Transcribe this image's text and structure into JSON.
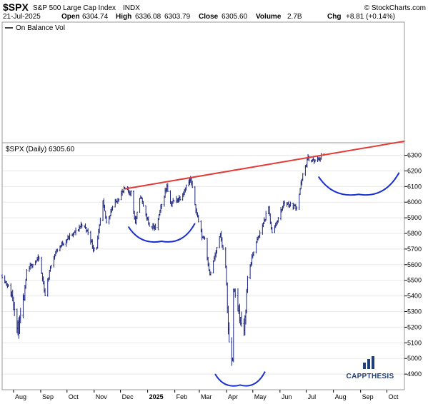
{
  "header": {
    "symbol": "$SPX",
    "name": "S&P 500 Large Cap Index",
    "exchange": "INDX",
    "watermark": "© StockCharts.com",
    "date": "21-Jul-2025",
    "open_label": "Open",
    "open": "6304.74",
    "high_label": "High",
    "high": "6336.08",
    "low_value": "6303.79",
    "close_label": "Close",
    "close": "6305.60",
    "volume_label": "Volume",
    "volume": "2.7B",
    "chg_label": "Chg",
    "chg": "+8.81 (+0.14%)"
  },
  "indicator_panel": {
    "legend": "On Balance Vol"
  },
  "price_panel": {
    "legend": "$SPX (Daily) 6305.60"
  },
  "branding": {
    "logo_text": "CAPPTHESIS"
  },
  "colors": {
    "bars": "#1a237e",
    "trendline": "#e53935",
    "cups": "#1a2fd4",
    "logo": "#1f3f79"
  },
  "chart_data": {
    "type": "ohlc-bar",
    "title": "$SPX S&P 500 Large Cap Index INDX",
    "series_name": "$SPX (Daily)",
    "y_axis": {
      "side": "right",
      "ticks": [
        4900,
        5000,
        5100,
        5200,
        5300,
        5400,
        5500,
        5600,
        5700,
        5800,
        5900,
        6000,
        6100,
        6200,
        6300
      ],
      "range": [
        4800,
        6380
      ]
    },
    "x_axis": {
      "ticks": [
        {
          "label": "Aug",
          "x": "2024-08-01"
        },
        {
          "label": "Sep",
          "x": "2024-09-01"
        },
        {
          "label": "Oct",
          "x": "2024-10-01"
        },
        {
          "label": "Nov",
          "x": "2024-11-01"
        },
        {
          "label": "Dec",
          "x": "2024-12-01"
        },
        {
          "label": "2025",
          "x": "2025-01-01",
          "bold": true
        },
        {
          "label": "Feb",
          "x": "2025-02-01"
        },
        {
          "label": "Mar",
          "x": "2025-03-01"
        },
        {
          "label": "Apr",
          "x": "2025-04-01"
        },
        {
          "label": "May",
          "x": "2025-05-01"
        },
        {
          "label": "Jun",
          "x": "2025-06-01"
        },
        {
          "label": "Jul",
          "x": "2025-07-01"
        },
        {
          "label": "Aug",
          "x": "2025-08-01"
        },
        {
          "label": "Sep",
          "x": "2025-09-01"
        },
        {
          "label": "Oct",
          "x": "2025-10-01"
        }
      ],
      "range": [
        "2024-07-19",
        "2025-10-21"
      ]
    },
    "price_path": [
      [
        "2024-07-19",
        5530
      ],
      [
        "2024-07-26",
        5460
      ],
      [
        "2024-08-02",
        5350
      ],
      [
        "2024-08-05",
        5190
      ],
      [
        "2024-08-07",
        5200
      ],
      [
        "2024-08-12",
        5340
      ],
      [
        "2024-08-16",
        5550
      ],
      [
        "2024-08-23",
        5610
      ],
      [
        "2024-08-30",
        5640
      ],
      [
        "2024-09-06",
        5410
      ],
      [
        "2024-09-13",
        5610
      ],
      [
        "2024-09-20",
        5700
      ],
      [
        "2024-09-30",
        5760
      ],
      [
        "2024-10-11",
        5810
      ],
      [
        "2024-10-18",
        5860
      ],
      [
        "2024-10-25",
        5810
      ],
      [
        "2024-10-31",
        5705
      ],
      [
        "2024-11-04",
        5720
      ],
      [
        "2024-11-11",
        6000
      ],
      [
        "2024-11-15",
        5870
      ],
      [
        "2024-11-22",
        5970
      ],
      [
        "2024-11-29",
        6030
      ],
      [
        "2024-12-06",
        6085
      ],
      [
        "2024-12-13",
        6060
      ],
      [
        "2024-12-18",
        5870
      ],
      [
        "2024-12-24",
        6040
      ],
      [
        "2025-01-02",
        5860
      ],
      [
        "2025-01-10",
        5830
      ],
      [
        "2025-01-16",
        5960
      ],
      [
        "2025-01-23",
        6110
      ],
      [
        "2025-01-27",
        5990
      ],
      [
        "2025-02-07",
        6030
      ],
      [
        "2025-02-14",
        6100
      ],
      [
        "2025-02-19",
        6144
      ],
      [
        "2025-02-26",
        5930
      ],
      [
        "2025-03-04",
        5780
      ],
      [
        "2025-03-07",
        5770
      ],
      [
        "2025-03-13",
        5530
      ],
      [
        "2025-03-25",
        5790
      ],
      [
        "2025-03-31",
        5600
      ],
      [
        "2025-04-04",
        5070
      ],
      [
        "2025-04-08",
        4980
      ],
      [
        "2025-04-09",
        5450
      ],
      [
        "2025-04-21",
        5150
      ],
      [
        "2025-04-25",
        5520
      ],
      [
        "2025-05-02",
        5690
      ],
      [
        "2025-05-12",
        5850
      ],
      [
        "2025-05-19",
        5960
      ],
      [
        "2025-05-23",
        5800
      ],
      [
        "2025-06-06",
        6000
      ],
      [
        "2025-06-13",
        5980
      ],
      [
        "2025-06-20",
        5970
      ],
      [
        "2025-06-27",
        6170
      ],
      [
        "2025-07-03",
        6280
      ],
      [
        "2025-07-11",
        6260
      ],
      [
        "2025-07-21",
        6305
      ]
    ],
    "annotations": {
      "trendline": {
        "x0": "2024-12-06",
        "y0": 6085,
        "x1": "2025-10-21",
        "y1": 6390
      },
      "cups": [
        {
          "x0": "2024-12-10",
          "x1": "2025-02-24",
          "bottom": 5750
        },
        {
          "x0": "2025-03-19",
          "x1": "2025-05-15",
          "bottom": 4830
        },
        {
          "x0": "2025-07-15",
          "x1": "2025-10-15",
          "bottom": 6050
        }
      ]
    }
  }
}
